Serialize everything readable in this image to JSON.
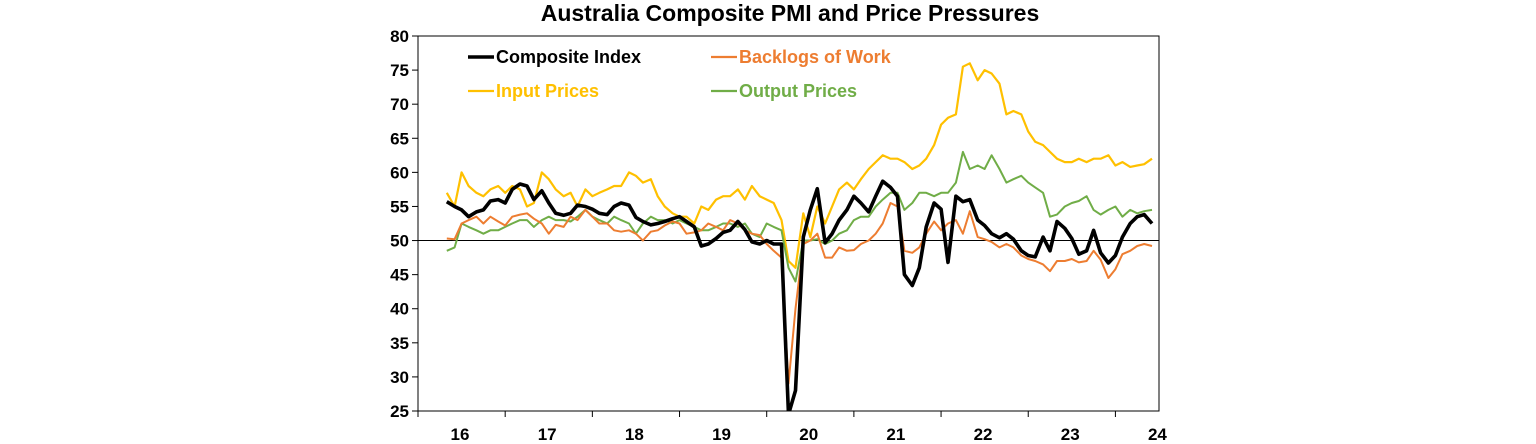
{
  "chart_data": {
    "type": "line",
    "title": "Australia Composite PMI and Price Pressures",
    "xlabel": "",
    "ylabel": "",
    "ylim": [
      25,
      80
    ],
    "xlim": [
      16,
      24.5
    ],
    "yticks": [
      "80",
      "75",
      "70",
      "65",
      "60",
      "55",
      "50",
      "45",
      "40",
      "35",
      "30",
      "25"
    ],
    "xticks": [
      "16",
      "17",
      "18",
      "19",
      "20",
      "21",
      "22",
      "23",
      "24"
    ],
    "reference_line": 50,
    "grid": false,
    "legend": "top-left",
    "colors": {
      "composite": "#000000",
      "backlogs": "#ED7D31",
      "input": "#FFC000",
      "output": "#70AD47"
    },
    "series": [
      {
        "key": "composite",
        "name": "Composite Index",
        "x": [
          16.33,
          16.42,
          16.5,
          16.58,
          16.67,
          16.75,
          16.83,
          16.92,
          17.0,
          17.08,
          17.17,
          17.25,
          17.33,
          17.42,
          17.5,
          17.58,
          17.67,
          17.75,
          17.83,
          17.92,
          18.0,
          18.08,
          18.17,
          18.25,
          18.33,
          18.42,
          18.5,
          18.58,
          18.67,
          18.75,
          18.83,
          18.92,
          19.0,
          19.08,
          19.17,
          19.25,
          19.33,
          19.42,
          19.5,
          19.58,
          19.67,
          19.75,
          19.83,
          19.92,
          20.0,
          20.08,
          20.17,
          20.25,
          20.33,
          20.42,
          20.5,
          20.58,
          20.67,
          20.75,
          20.83,
          20.92,
          21.0,
          21.08,
          21.17,
          21.25,
          21.33,
          21.42,
          21.5,
          21.58,
          21.67,
          21.75,
          21.83,
          21.92,
          22.0,
          22.08,
          22.17,
          22.25,
          22.33,
          22.42,
          22.5,
          22.58,
          22.67,
          22.75,
          22.83,
          22.92,
          23.0,
          23.08,
          23.17,
          23.25,
          23.33,
          23.42,
          23.5,
          23.58,
          23.67,
          23.75,
          23.83,
          23.92,
          24.0,
          24.08,
          24.17,
          24.25,
          24.33,
          24.42
        ],
        "values": [
          55.7,
          55.0,
          54.5,
          53.5,
          54.2,
          54.5,
          55.8,
          56.0,
          55.5,
          57.5,
          58.3,
          58.0,
          56.0,
          57.3,
          55.5,
          54.0,
          53.7,
          54.0,
          55.2,
          55.0,
          54.6,
          54.0,
          53.8,
          55.0,
          55.5,
          55.2,
          53.4,
          52.8,
          52.3,
          52.5,
          52.8,
          53.2,
          53.5,
          52.8,
          52.0,
          49.2,
          49.5,
          50.3,
          51.2,
          51.5,
          52.8,
          51.6,
          49.8,
          49.5,
          50.0,
          49.5,
          49.5,
          24.5,
          28.0,
          50.5,
          54.5,
          57.6,
          49.7,
          51.0,
          53.0,
          54.5,
          56.5,
          55.5,
          54.2,
          56.5,
          58.7,
          57.8,
          56.5,
          45.0,
          43.4,
          46.0,
          52.0,
          55.5,
          54.6,
          46.8,
          56.5,
          55.7,
          56.0,
          53.0,
          52.2,
          51.0,
          50.4,
          51.0,
          50.2,
          48.5,
          47.8,
          47.6,
          50.5,
          48.5,
          52.8,
          51.8,
          50.3,
          48.0,
          48.5,
          51.5,
          48.2,
          46.7,
          47.8,
          50.5,
          52.5,
          53.5,
          53.8,
          52.5
        ]
      },
      {
        "key": "backlogs",
        "name": "Backlogs of Work",
        "x": [
          16.33,
          16.42,
          16.5,
          16.58,
          16.67,
          16.75,
          16.83,
          16.92,
          17.0,
          17.08,
          17.17,
          17.25,
          17.33,
          17.42,
          17.5,
          17.58,
          17.67,
          17.75,
          17.83,
          17.92,
          18.0,
          18.08,
          18.17,
          18.25,
          18.33,
          18.42,
          18.5,
          18.58,
          18.67,
          18.75,
          18.83,
          18.92,
          19.0,
          19.08,
          19.17,
          19.25,
          19.33,
          19.42,
          19.5,
          19.58,
          19.67,
          19.75,
          19.83,
          19.92,
          20.0,
          20.08,
          20.17,
          20.25,
          20.33,
          20.42,
          20.5,
          20.58,
          20.67,
          20.75,
          20.83,
          20.92,
          21.0,
          21.08,
          21.17,
          21.25,
          21.33,
          21.42,
          21.5,
          21.58,
          21.67,
          21.75,
          21.83,
          21.92,
          22.0,
          22.08,
          22.17,
          22.25,
          22.33,
          22.42,
          22.5,
          22.58,
          22.67,
          22.75,
          22.83,
          22.92,
          23.0,
          23.08,
          23.17,
          23.25,
          23.33,
          23.42,
          23.5,
          23.58,
          23.67,
          23.75,
          23.83,
          23.92,
          24.0,
          24.08,
          24.17,
          24.25,
          24.33,
          24.42
        ],
        "values": [
          50.3,
          50.2,
          52.5,
          53.0,
          53.5,
          52.5,
          53.5,
          52.8,
          52.2,
          53.5,
          53.8,
          54.0,
          53.2,
          52.5,
          51.0,
          52.3,
          52.0,
          53.5,
          53.0,
          54.5,
          53.5,
          52.5,
          52.5,
          51.5,
          51.3,
          51.5,
          51.0,
          50.0,
          51.3,
          51.5,
          52.2,
          52.8,
          52.5,
          51.0,
          51.2,
          51.5,
          52.5,
          52.0,
          51.5,
          53.0,
          52.5,
          51.5,
          51.0,
          50.8,
          49.5,
          48.5,
          47.5,
          29.0,
          40.0,
          49.5,
          50.0,
          51.0,
          47.5,
          47.5,
          49.0,
          48.5,
          48.6,
          49.5,
          50.0,
          51.0,
          52.5,
          55.5,
          55.0,
          48.5,
          48.2,
          49.0,
          51.0,
          52.8,
          51.5,
          52.5,
          53.0,
          51.0,
          54.3,
          50.5,
          50.2,
          49.8,
          49.0,
          49.5,
          49.0,
          47.8,
          47.3,
          47.0,
          46.5,
          45.5,
          47.0,
          47.0,
          47.3,
          46.8,
          47.0,
          48.5,
          47.2,
          44.5,
          45.8,
          48.0,
          48.5,
          49.2,
          49.5,
          49.2
        ]
      },
      {
        "key": "input",
        "name": "Input Prices",
        "x": [
          16.33,
          16.42,
          16.5,
          16.58,
          16.67,
          16.75,
          16.83,
          16.92,
          17.0,
          17.08,
          17.17,
          17.25,
          17.33,
          17.42,
          17.5,
          17.58,
          17.67,
          17.75,
          17.83,
          17.92,
          18.0,
          18.08,
          18.17,
          18.25,
          18.33,
          18.42,
          18.5,
          18.58,
          18.67,
          18.75,
          18.83,
          18.92,
          19.0,
          19.08,
          19.17,
          19.25,
          19.33,
          19.42,
          19.5,
          19.58,
          19.67,
          19.75,
          19.83,
          19.92,
          20.0,
          20.08,
          20.17,
          20.25,
          20.33,
          20.42,
          20.5,
          20.58,
          20.67,
          20.75,
          20.83,
          20.92,
          21.0,
          21.08,
          21.17,
          21.25,
          21.33,
          21.42,
          21.5,
          21.58,
          21.67,
          21.75,
          21.83,
          21.92,
          22.0,
          22.08,
          22.17,
          22.25,
          22.33,
          22.42,
          22.5,
          22.58,
          22.67,
          22.75,
          22.83,
          22.92,
          23.0,
          23.08,
          23.17,
          23.25,
          23.33,
          23.42,
          23.5,
          23.58,
          23.67,
          23.75,
          23.83,
          23.92,
          24.0,
          24.08,
          24.17,
          24.25,
          24.33,
          24.42
        ],
        "values": [
          57.0,
          55.0,
          60.0,
          58.0,
          57.0,
          56.5,
          57.5,
          58.0,
          57.0,
          58.0,
          57.5,
          55.0,
          55.5,
          60.0,
          59.0,
          57.5,
          56.5,
          57.0,
          55.0,
          57.5,
          56.5,
          57.0,
          57.5,
          58.0,
          58.0,
          60.0,
          59.5,
          58.5,
          59.0,
          56.5,
          55.0,
          54.0,
          53.5,
          53.5,
          52.5,
          55.0,
          54.5,
          56.0,
          56.5,
          56.5,
          57.5,
          56.0,
          58.0,
          56.5,
          56.0,
          55.5,
          53.0,
          47.0,
          46.0,
          54.0,
          50.5,
          55.0,
          52.5,
          55.0,
          57.5,
          58.5,
          57.5,
          59.0,
          60.5,
          61.5,
          62.5,
          62.0,
          62.0,
          61.5,
          60.5,
          61.0,
          62.0,
          64.0,
          67.0,
          68.0,
          68.5,
          75.5,
          76.0,
          73.5,
          75.0,
          74.5,
          73.0,
          68.5,
          69.0,
          68.5,
          66.0,
          64.5,
          64.0,
          63.0,
          62.0,
          61.5,
          61.5,
          62.0,
          61.5,
          62.0,
          62.0,
          62.5,
          61.0,
          61.5,
          60.8,
          61.0,
          61.2,
          62.0
        ]
      },
      {
        "key": "output",
        "name": "Output Prices",
        "x": [
          16.33,
          16.42,
          16.5,
          16.58,
          16.67,
          16.75,
          16.83,
          16.92,
          17.0,
          17.08,
          17.17,
          17.25,
          17.33,
          17.42,
          17.5,
          17.58,
          17.67,
          17.75,
          17.83,
          17.92,
          18.0,
          18.08,
          18.17,
          18.25,
          18.33,
          18.42,
          18.5,
          18.58,
          18.67,
          18.75,
          18.83,
          18.92,
          19.0,
          19.08,
          19.17,
          19.25,
          19.33,
          19.42,
          19.5,
          19.58,
          19.67,
          19.75,
          19.83,
          19.92,
          20.0,
          20.08,
          20.17,
          20.25,
          20.33,
          20.42,
          20.5,
          20.58,
          20.67,
          20.75,
          20.83,
          20.92,
          21.0,
          21.08,
          21.17,
          21.25,
          21.33,
          21.42,
          21.5,
          21.58,
          21.67,
          21.75,
          21.83,
          21.92,
          22.0,
          22.08,
          22.17,
          22.25,
          22.33,
          22.42,
          22.5,
          22.58,
          22.67,
          22.75,
          22.83,
          22.92,
          23.0,
          23.08,
          23.17,
          23.25,
          23.33,
          23.42,
          23.5,
          23.58,
          23.67,
          23.75,
          23.83,
          23.92,
          24.0,
          24.08,
          24.17,
          24.25,
          24.33,
          24.42
        ],
        "values": [
          48.5,
          49.0,
          52.5,
          52.0,
          51.5,
          51.0,
          51.5,
          51.5,
          52.0,
          52.5,
          53.0,
          53.0,
          52.0,
          53.0,
          53.5,
          53.0,
          53.0,
          52.8,
          53.5,
          54.5,
          53.5,
          53.0,
          52.5,
          53.5,
          53.0,
          52.5,
          51.0,
          52.5,
          53.5,
          53.0,
          53.0,
          52.5,
          53.0,
          52.5,
          52.0,
          51.5,
          51.5,
          52.0,
          52.5,
          52.5,
          52.0,
          52.5,
          51.0,
          50.5,
          52.5,
          52.0,
          51.5,
          46.0,
          44.0,
          50.0,
          50.0,
          50.2,
          49.5,
          50.0,
          51.0,
          51.5,
          53.0,
          53.5,
          53.5,
          55.0,
          56.0,
          57.0,
          57.0,
          54.5,
          55.5,
          57.0,
          57.0,
          56.5,
          57.0,
          57.0,
          58.5,
          63.0,
          60.5,
          61.0,
          60.5,
          62.5,
          60.5,
          58.5,
          59.0,
          59.5,
          58.5,
          57.8,
          57.0,
          53.5,
          53.8,
          55.0,
          55.5,
          55.8,
          56.5,
          54.5,
          53.8,
          54.5,
          55.0,
          53.5,
          54.5,
          54.0,
          54.3,
          54.5
        ]
      }
    ]
  }
}
